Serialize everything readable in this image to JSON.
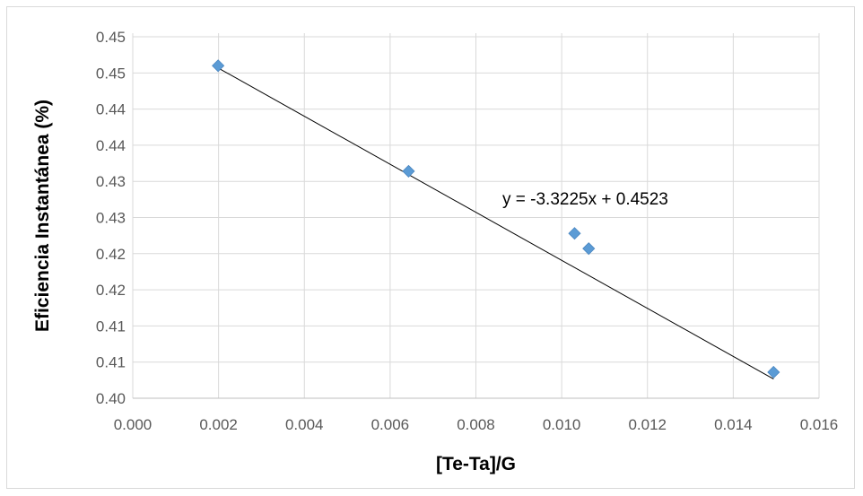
{
  "chart_data": {
    "type": "scatter",
    "title": "",
    "xlabel": "[Te-Ta]/G",
    "ylabel": "Eficiencia Instantánea (%)",
    "xlim": [
      0.0,
      0.016
    ],
    "ylim": [
      0.4,
      0.4505
    ],
    "x_ticks": [
      0.0,
      0.002,
      0.004,
      0.006,
      0.008,
      0.01,
      0.012,
      0.014,
      0.016
    ],
    "x_tick_labels": [
      "0.000",
      "0.002",
      "0.004",
      "0.006",
      "0.008",
      "0.010",
      "0.012",
      "0.014",
      "0.016"
    ],
    "y_ticks": [
      0.4,
      0.405,
      0.41,
      0.415,
      0.42,
      0.425,
      0.43,
      0.435,
      0.44,
      0.445,
      0.45
    ],
    "y_tick_labels": [
      "0.40",
      "0.41",
      "0.41",
      "0.42",
      "0.42",
      "0.43",
      "0.43",
      "0.44",
      "0.44",
      "0.45",
      "0.45"
    ],
    "grid": true,
    "marker_color": "#5b9bd5",
    "points": [
      {
        "x": 0.00199,
        "y": 0.446
      },
      {
        "x": 0.00643,
        "y": 0.4314
      },
      {
        "x": 0.0103,
        "y": 0.4228
      },
      {
        "x": 0.01063,
        "y": 0.4207
      },
      {
        "x": 0.01494,
        "y": 0.4036
      }
    ],
    "trendline": {
      "slope": -3.3225,
      "intercept": 0.4523,
      "x_range": [
        0.00199,
        0.01494
      ],
      "label": "y = -3.3225x + 0.4523"
    }
  }
}
